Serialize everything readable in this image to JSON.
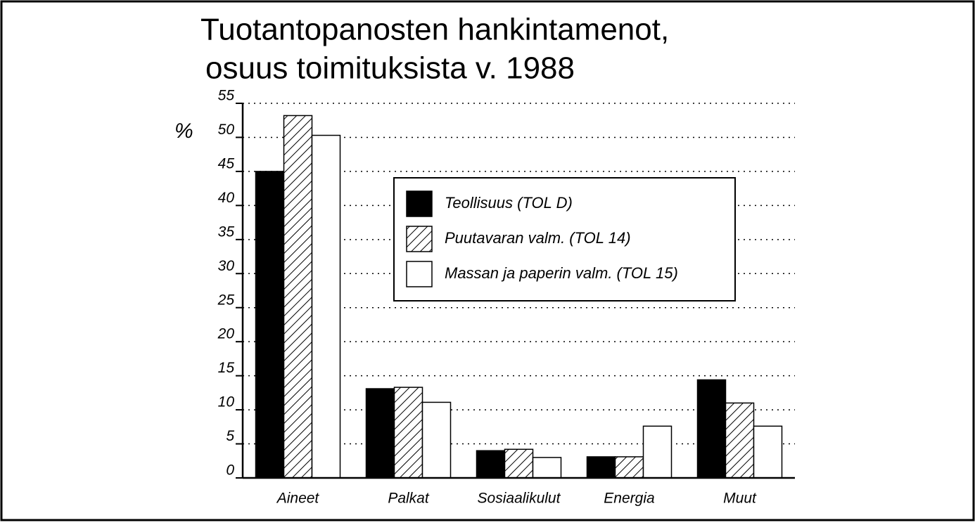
{
  "chart_data": {
    "type": "bar",
    "title": [
      "Tuotantopanosten hankintamenot,",
      "osuus toimituksista v. 1988"
    ],
    "y_label": "%",
    "categories": [
      "Aineet",
      "Palkat",
      "Sosiaalikulut",
      "Energia",
      "Muut"
    ],
    "series": [
      {
        "name": "Teollisuus (TOL D)",
        "color": "#000000",
        "hatch": false,
        "values": [
          45,
          13.1,
          4.0,
          3.1,
          14.4
        ]
      },
      {
        "name": "Puutavaran valm. (TOL 14)",
        "color": "#000000",
        "hatch": true,
        "values": [
          53.2,
          13.3,
          4.2,
          3.1,
          11.0
        ]
      },
      {
        "name": "Massan ja paperin valm. (TOL 15)",
        "color": "#ffffff",
        "hatch": false,
        "values": [
          50.3,
          11.1,
          3.0,
          7.6,
          7.6
        ]
      }
    ],
    "ylim": [
      0,
      55
    ],
    "yticks": [
      0,
      5,
      10,
      15,
      20,
      25,
      30,
      35,
      40,
      45,
      50,
      55
    ],
    "grid": true
  }
}
